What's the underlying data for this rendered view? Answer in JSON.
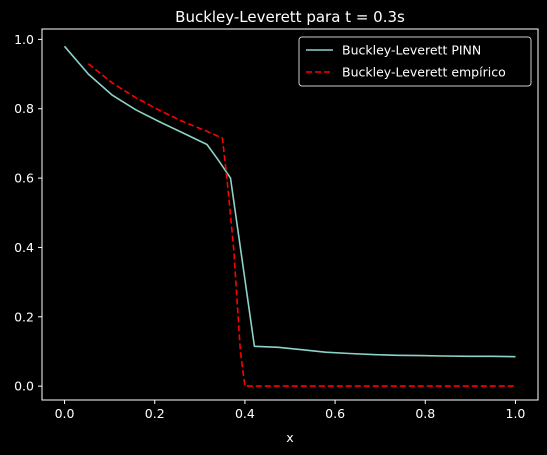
{
  "chart_data": {
    "type": "line",
    "title": "Buckley-Leverett para t = 0.3s",
    "xlabel": "x",
    "ylabel": "",
    "xlim": [
      -0.05,
      1.05
    ],
    "ylim": [
      -0.04,
      1.03
    ],
    "xticks": [
      0.0,
      0.2,
      0.4,
      0.6,
      0.8,
      1.0
    ],
    "xtick_labels": [
      "0.0",
      "0.2",
      "0.4",
      "0.6",
      "0.8",
      "1.0"
    ],
    "yticks": [
      0.0,
      0.2,
      0.4,
      0.6,
      0.8,
      1.0
    ],
    "ytick_labels": [
      "0.0",
      "0.2",
      "0.4",
      "0.6",
      "0.8",
      "1.0"
    ],
    "grid": false,
    "legend_position": "top-right",
    "series": [
      {
        "name": "Buckley-Leverett PINN",
        "color": "#8dd3c7",
        "style": "solid",
        "x": [
          0.0,
          0.053,
          0.105,
          0.158,
          0.211,
          0.263,
          0.316,
          0.342,
          0.368,
          0.421,
          0.474,
          0.526,
          0.579,
          0.632,
          0.684,
          0.737,
          0.789,
          0.842,
          0.895,
          0.947,
          1.0
        ],
        "y": [
          0.98,
          0.9,
          0.84,
          0.797,
          0.762,
          0.73,
          0.697,
          0.65,
          0.6,
          0.115,
          0.112,
          0.105,
          0.098,
          0.094,
          0.091,
          0.089,
          0.088,
          0.087,
          0.086,
          0.086,
          0.085
        ]
      },
      {
        "name": "Buckley-Leverett empírico",
        "color": "#ff0000",
        "style": "dashed",
        "x": [
          0.053,
          0.105,
          0.158,
          0.211,
          0.263,
          0.316,
          0.35,
          0.36,
          0.375,
          0.39,
          0.4,
          0.45,
          0.5,
          0.6,
          0.7,
          0.8,
          0.9,
          1.0
        ],
        "y": [
          0.93,
          0.875,
          0.832,
          0.795,
          0.763,
          0.735,
          0.715,
          0.6,
          0.4,
          0.1,
          0.0,
          0.0,
          0.0,
          0.0,
          0.0,
          0.0,
          0.0,
          0.0
        ]
      }
    ]
  }
}
